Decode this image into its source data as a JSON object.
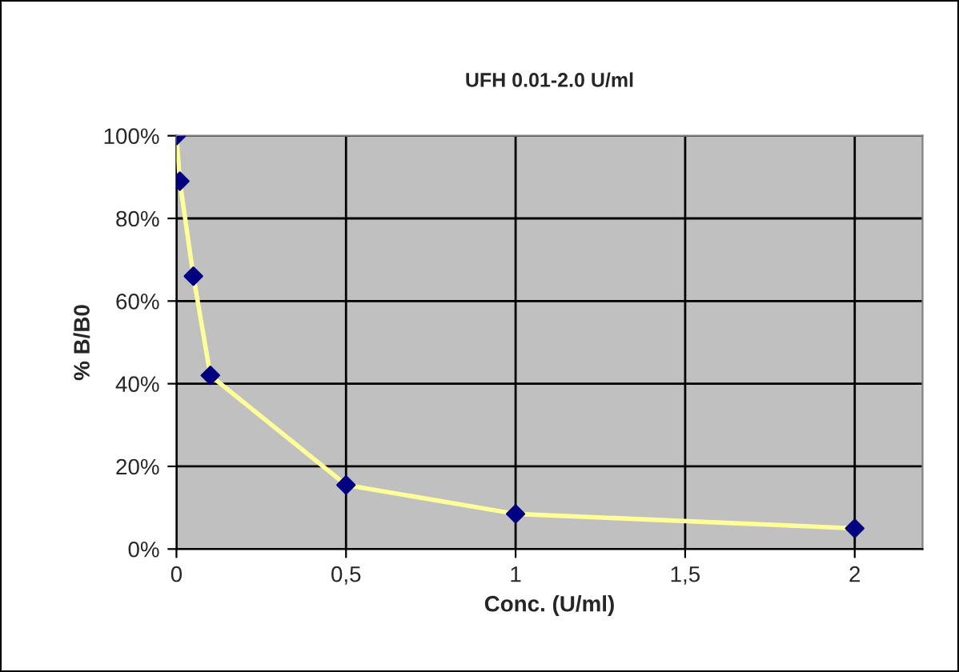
{
  "chart_data": {
    "type": "line",
    "title": "UFH 0.01-2.0 U/ml",
    "xlabel": "Conc. (U/ml)",
    "ylabel": "% B/B0",
    "x": [
      0,
      0.01,
      0.05,
      0.1,
      0.5,
      1,
      2
    ],
    "series": [
      {
        "color": "#ffff99",
        "colors": [
          "#000080",
          "#000080",
          "#000080",
          "#000080",
          "#000080",
          "#000080",
          "#000080"
        ],
        "values": [
          100,
          89,
          66,
          42,
          15.5,
          8.5,
          5
        ]
      }
    ],
    "xlim": [
      0,
      2.2
    ],
    "xticks": [
      0,
      {
        "value": 0.5,
        "label": "0,5"
      },
      1,
      {
        "value": 1.5,
        "label": "1,5"
      },
      2
    ],
    "ylim": [
      0,
      100
    ],
    "yticks": [
      {
        "value": 0,
        "label": "0%"
      },
      {
        "value": 20,
        "label": "20%"
      },
      {
        "value": 40,
        "label": "40%"
      },
      {
        "value": 60,
        "label": "60%"
      },
      {
        "value": 80,
        "label": "80%"
      },
      {
        "value": 100,
        "label": "100%"
      }
    ],
    "grid": true,
    "marker": "diamond",
    "line_style": "solid"
  }
}
